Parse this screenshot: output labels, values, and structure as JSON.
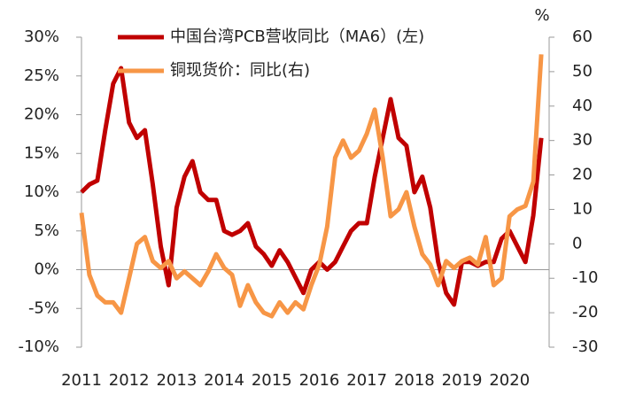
{
  "chart_data": {
    "type": "line",
    "y2label": "%",
    "categories": [
      "2011",
      null,
      null,
      null,
      null,
      null,
      "2012",
      null,
      null,
      null,
      null,
      null,
      "2013",
      null,
      null,
      null,
      null,
      null,
      "2014",
      null,
      null,
      null,
      null,
      null,
      "2015",
      null,
      null,
      null,
      null,
      null,
      "2016",
      null,
      null,
      null,
      null,
      null,
      "2017",
      null,
      null,
      null,
      null,
      null,
      "2018",
      null,
      null,
      null,
      null,
      null,
      "2019",
      null,
      null,
      null,
      null,
      null,
      "2020",
      null,
      null,
      null,
      null
    ],
    "series": [
      {
        "name": "中国台湾PCB营收同比（MA6）(左)",
        "color": "#c00000",
        "axis": "y",
        "values": [
          10,
          11,
          11.5,
          18,
          24,
          26,
          19,
          17,
          18,
          11,
          3,
          -2,
          8,
          12,
          14,
          10,
          9,
          9,
          5,
          4.5,
          5,
          6,
          3,
          2,
          0.5,
          2.5,
          1,
          -1,
          -3,
          0,
          1,
          0,
          1,
          3,
          5,
          6,
          6,
          12,
          17,
          22,
          17,
          16,
          10,
          12,
          8,
          1,
          -3,
          -4.5,
          1,
          1,
          0.5,
          1,
          1,
          4,
          5,
          3,
          1,
          7,
          17
        ]
      },
      {
        "name": "铜现货价：同比(右)",
        "color": "#f79646",
        "axis": "y2",
        "values": [
          9,
          -9,
          -15,
          -17,
          -17,
          -20,
          -10,
          0,
          2,
          -5,
          -7,
          -5,
          -10,
          -8,
          -10,
          -12,
          -8,
          -3,
          -7,
          -9,
          -18,
          -12,
          -17,
          -20,
          -21,
          -17,
          -20,
          -17,
          -19,
          -12,
          -6,
          5,
          25,
          30,
          25,
          27,
          32,
          39,
          25,
          8,
          10,
          15,
          5,
          -3,
          -6,
          -12,
          -5,
          -7,
          -5,
          -4,
          -6,
          2,
          -12,
          -10,
          8,
          10,
          11,
          18,
          55
        ]
      }
    ],
    "ylim": [
      -10,
      30
    ],
    "yticks": [
      {
        "value": -10,
        "label": "-10%"
      },
      {
        "value": -5,
        "label": "-5%"
      },
      {
        "value": 0,
        "label": "0%"
      },
      {
        "value": 5,
        "label": "5%"
      },
      {
        "value": 10,
        "label": "10%"
      },
      {
        "value": 15,
        "label": "15%"
      },
      {
        "value": 20,
        "label": "20%"
      },
      {
        "value": 25,
        "label": "25%"
      },
      {
        "value": 30,
        "label": "30%"
      }
    ],
    "y2lim": [
      -30,
      60
    ],
    "y2ticks": [
      -30,
      -20,
      -10,
      0,
      10,
      20,
      30,
      40,
      50,
      60
    ]
  }
}
